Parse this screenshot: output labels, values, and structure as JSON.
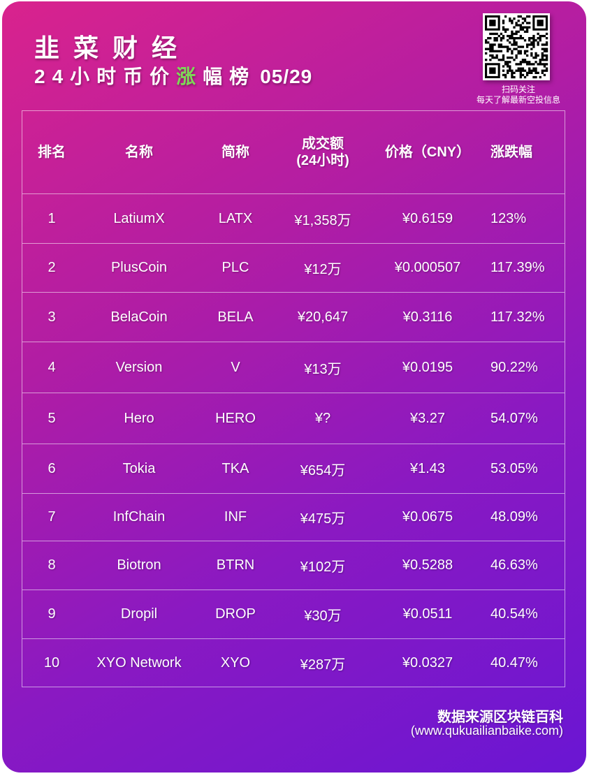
{
  "header": {
    "brand": "韭菜财经",
    "subtitle_pre": "24小时币价",
    "subtitle_accent": "涨",
    "subtitle_post": "幅榜",
    "date": "05/29",
    "accent_color": "#7ed957"
  },
  "qr": {
    "icon": "qr-code-icon",
    "caption_line1": "扫码关注",
    "caption_line2": "每天了解最新空投信息"
  },
  "table": {
    "headers": {
      "rank": "排名",
      "name": "名称",
      "symbol": "简称",
      "volume_line1": "成交额",
      "volume_line2": "(24小时)",
      "price": "价格（CNY）",
      "change": "涨跌幅"
    },
    "rows": [
      {
        "rank": "1",
        "name": "LatiumX",
        "symbol": "LATX",
        "volume": "¥1,358万",
        "price": "¥0.6159",
        "change": "123%"
      },
      {
        "rank": "2",
        "name": "PlusCoin",
        "symbol": "PLC",
        "volume": "¥12万",
        "price": "¥0.000507",
        "change": "117.39%"
      },
      {
        "rank": "3",
        "name": "BelaCoin",
        "symbol": "BELA",
        "volume": "¥20,647",
        "price": "¥0.3116",
        "change": "117.32%"
      },
      {
        "rank": "4",
        "name": "Version",
        "symbol": "V",
        "volume": "¥13万",
        "price": "¥0.0195",
        "change": "90.22%"
      },
      {
        "rank": "5",
        "name": "Hero",
        "symbol": "HERO",
        "volume": "¥?",
        "price": "¥3.27",
        "change": "54.07%"
      },
      {
        "rank": "6",
        "name": "Tokia",
        "symbol": "TKA",
        "volume": "¥654万",
        "price": "¥1.43",
        "change": "53.05%"
      },
      {
        "rank": "7",
        "name": "InfChain",
        "symbol": "INF",
        "volume": "¥475万",
        "price": "¥0.0675",
        "change": "48.09%"
      },
      {
        "rank": "8",
        "name": "Biotron",
        "symbol": "BTRN",
        "volume": "¥102万",
        "price": "¥0.5288",
        "change": "46.63%"
      },
      {
        "rank": "9",
        "name": "Dropil",
        "symbol": "DROP",
        "volume": "¥30万",
        "price": "¥0.0511",
        "change": "40.54%"
      },
      {
        "rank": "10",
        "name": "XYO Network",
        "symbol": "XYO",
        "volume": "¥287万",
        "price": "¥0.0327",
        "change": "40.47%"
      }
    ]
  },
  "footer": {
    "source": "数据来源区块链百科",
    "url": "(www.qukuailianbaike.com)"
  }
}
